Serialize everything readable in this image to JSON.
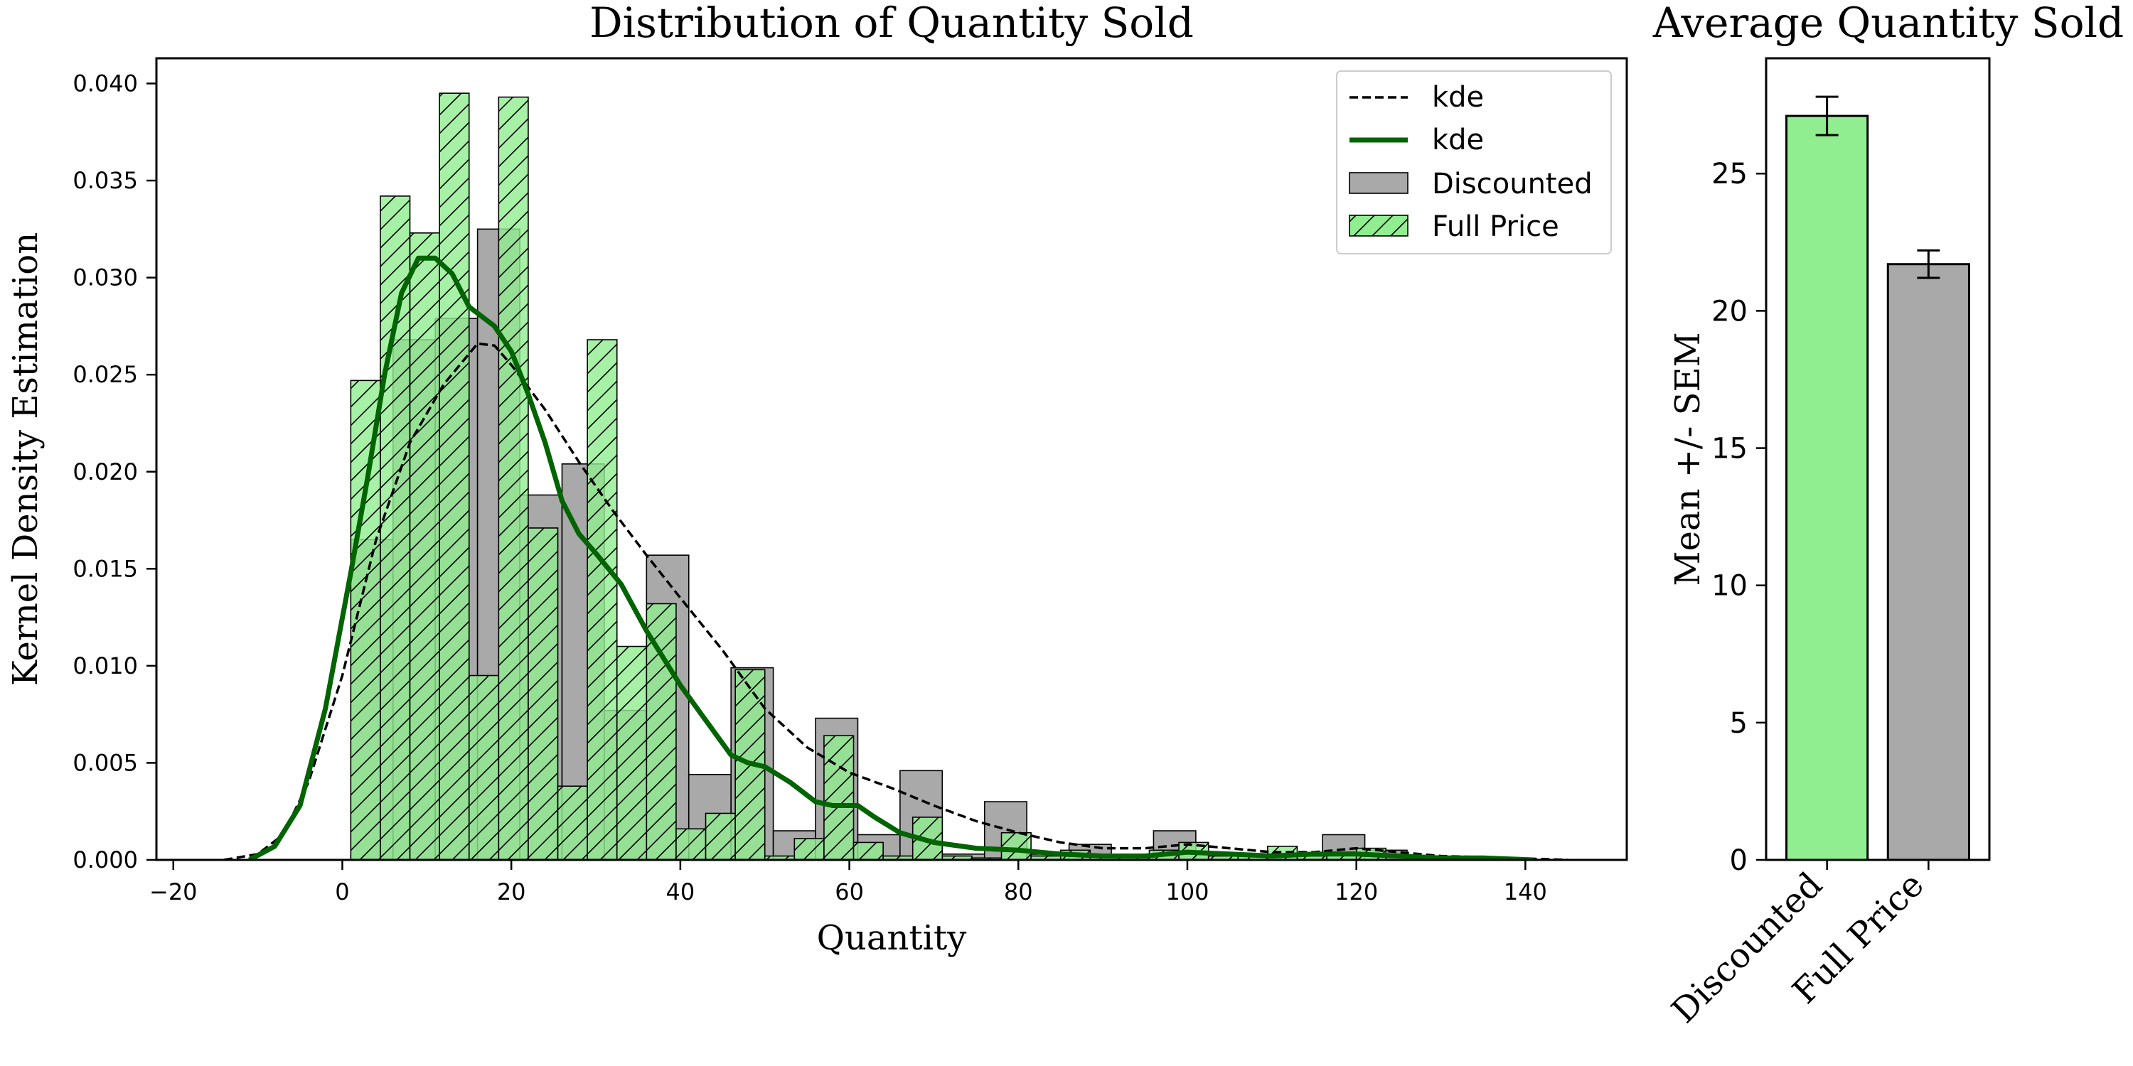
{
  "chart_data": [
    {
      "type": "bar",
      "subtype": "histogram_with_kde",
      "title": "Distribution of Quantity Sold",
      "xlabel": "Quantity",
      "ylabel": "Kernel Density Estimation",
      "xlim": [
        -22,
        152
      ],
      "ylim": [
        0,
        0.0413
      ],
      "xticks": [
        -20,
        0,
        20,
        40,
        60,
        80,
        100,
        120,
        140
      ],
      "yticks": [
        0,
        0.005,
        0.01,
        0.015,
        0.02,
        0.025,
        0.03,
        0.035,
        0.04
      ],
      "ytick_labels": [
        "0.000",
        "0.005",
        "0.010",
        "0.015",
        "0.020",
        "0.025",
        "0.030",
        "0.035",
        "0.040"
      ],
      "grid": false,
      "legend_position": "top-right",
      "legend": [
        {
          "label": "kde",
          "kind": "line-dashed",
          "color": "#000000"
        },
        {
          "label": "kde",
          "kind": "line-solid",
          "color": "#006400"
        },
        {
          "label": "Discounted",
          "kind": "patch",
          "color": "#a9a9a9"
        },
        {
          "label": "Full Price",
          "kind": "patch-hatched",
          "color": "#90ee90"
        }
      ],
      "series": [
        {
          "name": "Discounted",
          "color": "#a9a9a9",
          "bins": [
            {
              "x0": 1,
              "x1": 6,
              "y": 0.0165
            },
            {
              "x0": 6,
              "x1": 11,
              "y": 0.0268
            },
            {
              "x0": 11,
              "x1": 16,
              "y": 0.0279
            },
            {
              "x0": 16,
              "x1": 21,
              "y": 0.0325
            },
            {
              "x0": 21,
              "x1": 26,
              "y": 0.0188
            },
            {
              "x0": 26,
              "x1": 31,
              "y": 0.0204
            },
            {
              "x0": 31,
              "x1": 36,
              "y": 0.0077
            },
            {
              "x0": 36,
              "x1": 41,
              "y": 0.0157
            },
            {
              "x0": 41,
              "x1": 46,
              "y": 0.0044
            },
            {
              "x0": 46,
              "x1": 51,
              "y": 0.0099
            },
            {
              "x0": 51,
              "x1": 56,
              "y": 0.0015
            },
            {
              "x0": 56,
              "x1": 61,
              "y": 0.0073
            },
            {
              "x0": 61,
              "x1": 66,
              "y": 0.0013
            },
            {
              "x0": 66,
              "x1": 71,
              "y": 0.0046
            },
            {
              "x0": 71,
              "x1": 76,
              "y": 0.0003
            },
            {
              "x0": 76,
              "x1": 81,
              "y": 0.003
            },
            {
              "x0": 81,
              "x1": 86,
              "y": 0.0003
            },
            {
              "x0": 86,
              "x1": 91,
              "y": 0.0008
            },
            {
              "x0": 91,
              "x1": 96,
              "y": 0.0003
            },
            {
              "x0": 96,
              "x1": 101,
              "y": 0.0015
            },
            {
              "x0": 101,
              "x1": 106,
              "y": 0.0003
            },
            {
              "x0": 106,
              "x1": 111,
              "y": 0.0003
            },
            {
              "x0": 111,
              "x1": 116,
              "y": 0.0003
            },
            {
              "x0": 116,
              "x1": 121,
              "y": 0.0013
            },
            {
              "x0": 121,
              "x1": 126,
              "y": 0.0005
            }
          ]
        },
        {
          "name": "Full Price",
          "color": "#90ee90",
          "hatch": "/",
          "bins": [
            {
              "x0": 1,
              "x1": 4.5,
              "y": 0.0247
            },
            {
              "x0": 4.5,
              "x1": 8,
              "y": 0.0342
            },
            {
              "x0": 8,
              "x1": 11.5,
              "y": 0.0323
            },
            {
              "x0": 11.5,
              "x1": 15,
              "y": 0.0395
            },
            {
              "x0": 15,
              "x1": 18.5,
              "y": 0.0095
            },
            {
              "x0": 18.5,
              "x1": 22,
              "y": 0.0393
            },
            {
              "x0": 22,
              "x1": 25.5,
              "y": 0.0171
            },
            {
              "x0": 25.5,
              "x1": 29,
              "y": 0.0038
            },
            {
              "x0": 29,
              "x1": 32.5,
              "y": 0.0268
            },
            {
              "x0": 32.5,
              "x1": 36,
              "y": 0.011
            },
            {
              "x0": 36,
              "x1": 39.5,
              "y": 0.0132
            },
            {
              "x0": 39.5,
              "x1": 43,
              "y": 0.0016
            },
            {
              "x0": 43,
              "x1": 46.5,
              "y": 0.0024
            },
            {
              "x0": 46.5,
              "x1": 50,
              "y": 0.0098
            },
            {
              "x0": 50,
              "x1": 53.5,
              "y": 0.0002
            },
            {
              "x0": 53.5,
              "x1": 57,
              "y": 0.0011
            },
            {
              "x0": 57,
              "x1": 60.5,
              "y": 0.0064
            },
            {
              "x0": 60.5,
              "x1": 64,
              "y": 0.0009
            },
            {
              "x0": 64,
              "x1": 67.5,
              "y": 0.0002
            },
            {
              "x0": 67.5,
              "x1": 71,
              "y": 0.0022
            },
            {
              "x0": 71,
              "x1": 74.5,
              "y": 0.0002
            },
            {
              "x0": 74.5,
              "x1": 78,
              "y": 0.0001
            },
            {
              "x0": 78,
              "x1": 81.5,
              "y": 0.0014
            },
            {
              "x0": 81.5,
              "x1": 85,
              "y": 0.0002
            },
            {
              "x0": 85,
              "x1": 88.5,
              "y": 0.0005
            },
            {
              "x0": 88.5,
              "x1": 92,
              "y": 0.0002
            },
            {
              "x0": 92,
              "x1": 95.5,
              "y": 0.0001
            },
            {
              "x0": 95.5,
              "x1": 99,
              "y": 0.0005
            },
            {
              "x0": 99,
              "x1": 102.5,
              "y": 0.0009
            },
            {
              "x0": 102.5,
              "x1": 106,
              "y": 0.0002
            },
            {
              "x0": 106,
              "x1": 109.5,
              "y": 0.0002
            },
            {
              "x0": 109.5,
              "x1": 113,
              "y": 0.0007
            },
            {
              "x0": 113,
              "x1": 116.5,
              "y": 0.0002
            },
            {
              "x0": 116.5,
              "x1": 120,
              "y": 0.0004
            },
            {
              "x0": 120,
              "x1": 123.5,
              "y": 0.0006
            }
          ]
        }
      ],
      "kde": [
        {
          "label": "kde",
          "style": "dashed",
          "color": "#000000",
          "points": [
            [
              -14,
              0
            ],
            [
              -10,
              0.0003
            ],
            [
              -7,
              0.0013
            ],
            [
              -4,
              0.004
            ],
            [
              0,
              0.0095
            ],
            [
              4,
              0.0165
            ],
            [
              8,
              0.0215
            ],
            [
              12,
              0.0245
            ],
            [
              16,
              0.0266
            ],
            [
              18,
              0.0265
            ],
            [
              20,
              0.0255
            ],
            [
              24,
              0.0232
            ],
            [
              28,
              0.0205
            ],
            [
              32,
              0.018
            ],
            [
              36,
              0.0157
            ],
            [
              40,
              0.0135
            ],
            [
              45,
              0.0108
            ],
            [
              50,
              0.0078
            ],
            [
              55,
              0.0058
            ],
            [
              60,
              0.0045
            ],
            [
              65,
              0.0037
            ],
            [
              70,
              0.0028
            ],
            [
              75,
              0.002
            ],
            [
              80,
              0.0014
            ],
            [
              85,
              0.0009
            ],
            [
              90,
              0.0006
            ],
            [
              95,
              0.0006
            ],
            [
              100,
              0.0008
            ],
            [
              105,
              0.0006
            ],
            [
              110,
              0.0004
            ],
            [
              115,
              0.0004
            ],
            [
              120,
              0.0006
            ],
            [
              125,
              0.0004
            ],
            [
              130,
              0.0002
            ],
            [
              138,
              0.0001
            ],
            [
              145,
              0
            ]
          ]
        },
        {
          "label": "kde",
          "style": "solid",
          "color": "#006400",
          "points": [
            [
              -11,
              0
            ],
            [
              -8,
              0.0007
            ],
            [
              -5,
              0.0028
            ],
            [
              -2,
              0.0078
            ],
            [
              1,
              0.0148
            ],
            [
              3,
              0.0197
            ],
            [
              5,
              0.025
            ],
            [
              7,
              0.0292
            ],
            [
              9,
              0.031
            ],
            [
              11,
              0.031
            ],
            [
              13,
              0.0302
            ],
            [
              15,
              0.0285
            ],
            [
              18,
              0.0275
            ],
            [
              20,
              0.0262
            ],
            [
              22,
              0.024
            ],
            [
              24,
              0.0215
            ],
            [
              26,
              0.0185
            ],
            [
              28,
              0.0168
            ],
            [
              30,
              0.0158
            ],
            [
              33,
              0.0142
            ],
            [
              36,
              0.0118
            ],
            [
              40,
              0.009
            ],
            [
              43,
              0.0072
            ],
            [
              46,
              0.0054
            ],
            [
              48,
              0.005
            ],
            [
              50,
              0.0048
            ],
            [
              53,
              0.004
            ],
            [
              56,
              0.003
            ],
            [
              58,
              0.0028
            ],
            [
              61,
              0.0028
            ],
            [
              63,
              0.0022
            ],
            [
              66,
              0.0014
            ],
            [
              70,
              0.0009
            ],
            [
              75,
              0.0006
            ],
            [
              80,
              0.0005
            ],
            [
              85,
              0.0003
            ],
            [
              90,
              0.0002
            ],
            [
              95,
              0.0002
            ],
            [
              100,
              0.0004
            ],
            [
              105,
              0.0003
            ],
            [
              110,
              0.0002
            ],
            [
              115,
              0.0003
            ],
            [
              120,
              0.0003
            ],
            [
              125,
              0.0002
            ],
            [
              130,
              0.0001
            ],
            [
              135,
              0.0001
            ],
            [
              141,
              0
            ]
          ]
        }
      ]
    },
    {
      "type": "bar",
      "title": "Average Quantity Sold",
      "xlabel": "",
      "ylabel": "Mean +/- SEM",
      "categories": [
        "Discounted",
        "Full Price"
      ],
      "values": [
        27.1,
        21.7
      ],
      "errors": [
        0.7,
        0.5
      ],
      "colors": [
        "#90ee90",
        "#a9a9a9"
      ],
      "ylim": [
        0,
        29.2
      ],
      "yticks": [
        0,
        5,
        10,
        15,
        20,
        25
      ],
      "grid": false
    }
  ]
}
